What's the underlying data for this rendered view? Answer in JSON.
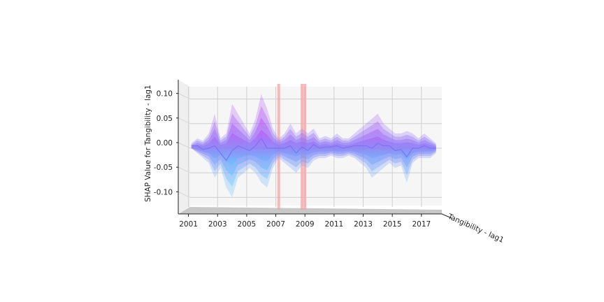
{
  "chart_data": {
    "type": "area",
    "view": "3d-projection",
    "xlabel": "",
    "ylabel": "SHAP Value for Tangibility - lag1",
    "zlabel": "Tangibility - lag1",
    "x_ticks": [
      "2001",
      "2003",
      "2005",
      "2007",
      "2009",
      "2011",
      "2013",
      "2015",
      "2017"
    ],
    "x_range": [
      2000.3,
      2018.4
    ],
    "y_ticks": [
      "-0.10",
      "-0.05",
      "0.00",
      "0.05",
      "0.10"
    ],
    "y_range": [
      -0.125,
      0.125
    ],
    "grid": true,
    "pane_color": "#f6f6f6",
    "colormap": [
      "#55c8ff",
      "#8a7cf6",
      "#c24cf6"
    ],
    "highlight_color": "#f4a3a3",
    "highlight_years": [
      2007.2,
      2008.8,
      2009.0
    ],
    "envelope": {
      "years": [
        2001.2,
        2001.6,
        2002.0,
        2002.4,
        2002.8,
        2003.2,
        2003.6,
        2004.0,
        2004.4,
        2004.8,
        2005.2,
        2005.6,
        2006.0,
        2006.4,
        2006.8,
        2007.2,
        2007.6,
        2008.0,
        2008.4,
        2008.8,
        2009.2,
        2009.6,
        2010.0,
        2010.4,
        2010.8,
        2011.2,
        2011.6,
        2012.0,
        2012.4,
        2012.8,
        2013.2,
        2013.6,
        2014.0,
        2014.4,
        2014.8,
        2015.2,
        2015.6,
        2016.0,
        2016.4,
        2016.8,
        2017.2,
        2017.6,
        2018.0
      ],
      "upper": [
        0.01,
        0.02,
        0.015,
        0.03,
        0.07,
        0.02,
        0.03,
        0.09,
        0.07,
        0.05,
        0.03,
        0.06,
        0.11,
        0.08,
        0.04,
        0.02,
        0.03,
        0.05,
        0.03,
        0.04,
        0.03,
        0.04,
        0.02,
        0.025,
        0.02,
        0.03,
        0.02,
        0.02,
        0.03,
        0.04,
        0.05,
        0.06,
        0.07,
        0.05,
        0.04,
        0.03,
        0.03,
        0.035,
        0.03,
        0.02,
        0.03,
        0.02,
        0.01
      ],
      "lower": [
        0.0,
        -0.01,
        -0.02,
        -0.03,
        -0.06,
        -0.04,
        -0.08,
        -0.1,
        -0.06,
        -0.05,
        -0.04,
        -0.05,
        -0.07,
        -0.08,
        -0.04,
        -0.02,
        -0.03,
        -0.04,
        -0.05,
        -0.035,
        -0.04,
        -0.025,
        -0.02,
        -0.02,
        -0.015,
        -0.02,
        -0.02,
        -0.015,
        -0.02,
        -0.03,
        -0.04,
        -0.06,
        -0.05,
        -0.04,
        -0.03,
        -0.04,
        -0.035,
        -0.07,
        -0.03,
        -0.02,
        -0.02,
        -0.02,
        -0.01
      ]
    }
  }
}
